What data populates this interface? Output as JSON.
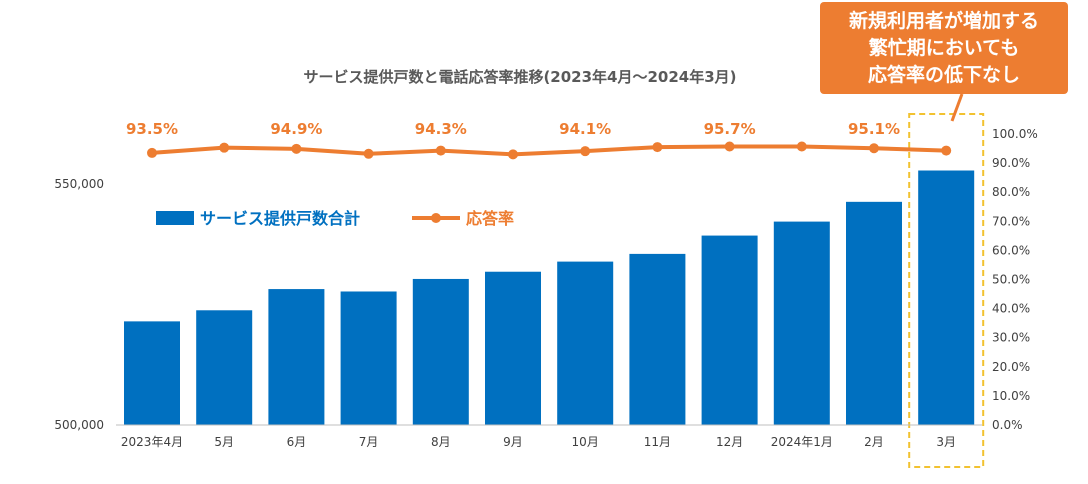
{
  "chart_data": {
    "type": "bar+line",
    "title": "サービス提供戸数と電話応答率推移(2023年4月～2024年3月)",
    "categories": [
      "2023年4月",
      "5月",
      "6月",
      "7月",
      "8月",
      "9月",
      "10月",
      "11月",
      "12月",
      "2024年1月",
      "2月",
      "3月"
    ],
    "series": [
      {
        "name": "サービス提供戸数合計",
        "type": "bar",
        "axis": "left",
        "color": "#0070C0",
        "values": [
          521500,
          523800,
          528200,
          527700,
          530300,
          531800,
          533900,
          535500,
          539300,
          542200,
          546300,
          552800
        ]
      },
      {
        "name": "応答率",
        "type": "line",
        "axis": "right",
        "color": "#ED7D31",
        "values": [
          93.5,
          95.3,
          94.9,
          93.2,
          94.3,
          93.0,
          94.1,
          95.5,
          95.7,
          95.7,
          95.1,
          94.3
        ]
      }
    ],
    "line_data_labels": [
      {
        "index": 0,
        "text": "93.5%"
      },
      {
        "index": 2,
        "text": "94.9%"
      },
      {
        "index": 4,
        "text": "94.3%"
      },
      {
        "index": 6,
        "text": "94.1%"
      },
      {
        "index": 8,
        "text": "95.7%"
      },
      {
        "index": 10,
        "text": "95.1%"
      }
    ],
    "left_axis": {
      "ylim": [
        500000,
        560000
      ],
      "ticks": [
        {
          "value": 500000,
          "label": "500,000"
        },
        {
          "value": 550000,
          "label": "550,000"
        }
      ]
    },
    "right_axis": {
      "ylim": [
        0,
        100
      ],
      "ticks": [
        "0.0%",
        "10.0%",
        "20.0%",
        "30.0%",
        "40.0%",
        "50.0%",
        "60.0%",
        "70.0%",
        "80.0%",
        "90.0%",
        "100.0%"
      ]
    },
    "legend": [
      {
        "label": "サービス提供戸数合計",
        "kind": "bar",
        "color": "#0070C0"
      },
      {
        "label": "応答率",
        "kind": "line",
        "color": "#ED7D31"
      }
    ],
    "highlight": {
      "category": "3月",
      "style": "dashed-box",
      "color": "#F2C230"
    }
  },
  "callout": {
    "lines": [
      "新規利用者が増加する",
      "繁忙期においても",
      "応答率の低下なし"
    ],
    "color": "#ED7D31"
  }
}
